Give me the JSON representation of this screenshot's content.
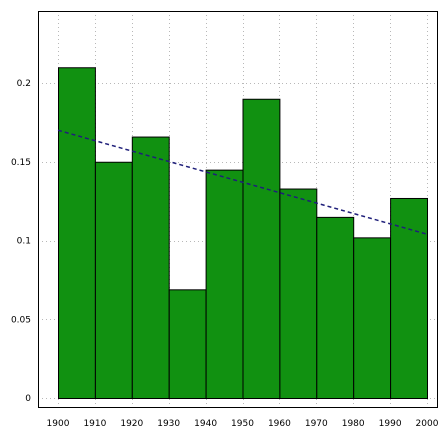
{
  "chart_data": {
    "type": "bar",
    "title": "",
    "xlabel": "",
    "ylabel": "",
    "bins": [
      {
        "start": 1900,
        "end": 1910,
        "value": 0.21
      },
      {
        "start": 1910,
        "end": 1920,
        "value": 0.15
      },
      {
        "start": 1920,
        "end": 1930,
        "value": 0.166
      },
      {
        "start": 1930,
        "end": 1940,
        "value": 0.069
      },
      {
        "start": 1940,
        "end": 1950,
        "value": 0.145
      },
      {
        "start": 1950,
        "end": 1960,
        "value": 0.19
      },
      {
        "start": 1960,
        "end": 1970,
        "value": 0.133
      },
      {
        "start": 1970,
        "end": 1980,
        "value": 0.115
      },
      {
        "start": 1980,
        "end": 1990,
        "value": 0.102
      },
      {
        "start": 1990,
        "end": 2000,
        "value": 0.127
      }
    ],
    "trend_line": {
      "x": [
        1900,
        2000
      ],
      "y": [
        0.17,
        0.104
      ],
      "style": "dashed"
    },
    "xlim": [
      1900,
      2000
    ],
    "ylim": [
      0,
      0.2329
    ],
    "xticks": [
      1900,
      1910,
      1920,
      1930,
      1940,
      1950,
      1960,
      1970,
      1980,
      1990,
      2000
    ],
    "yticks": [
      0,
      0.05,
      0.1,
      0.15,
      0.2
    ],
    "ytick_labels": [
      "0",
      "0.05",
      "0.1",
      "0.15",
      "0.2"
    ],
    "grid": true,
    "legend": "none",
    "colors": {
      "bar_fill": "#119111",
      "bar_edge": "#000000",
      "trend": "#1f1f7a",
      "grid": "#b8b8b8"
    }
  }
}
